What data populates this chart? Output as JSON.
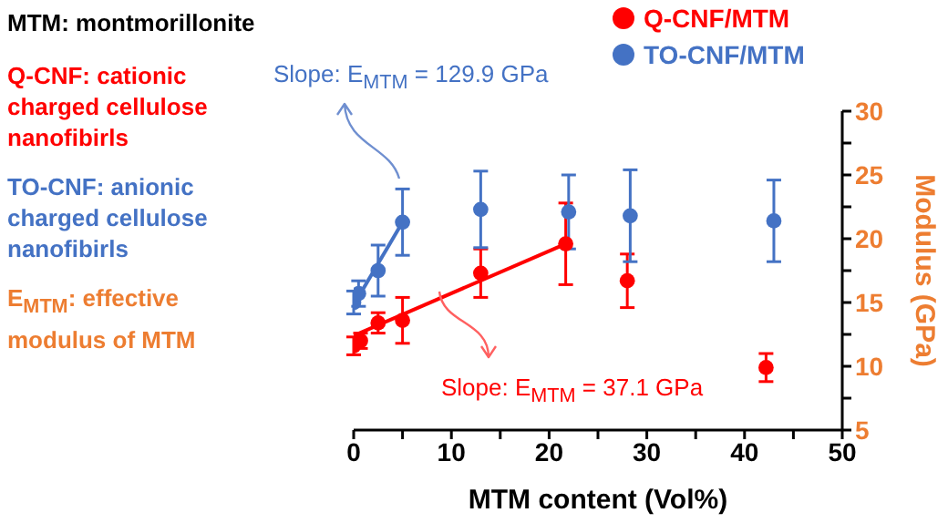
{
  "chart_data": {
    "type": "scatter",
    "xlabel": "MTM content (Vol%)",
    "ylabel": "Modulus (GPa)",
    "xlim": [
      0,
      50
    ],
    "xticks": [
      0,
      {
        "value": 5,
        "label": null
      },
      10,
      {
        "value": 15,
        "label": null
      },
      20,
      {
        "value": 25,
        "label": null
      },
      30,
      {
        "value": 35,
        "label": null
      },
      40,
      {
        "value": 45,
        "label": null
      },
      50
    ],
    "ylim": [
      5,
      30
    ],
    "yticks": [
      5,
      {
        "value": 7.5,
        "label": null
      },
      10,
      {
        "value": 12.5,
        "label": null
      },
      15,
      {
        "value": 17.5,
        "label": null
      },
      20,
      {
        "value": 22.5,
        "label": null
      },
      25,
      {
        "value": 27.5,
        "label": null
      },
      30
    ],
    "legend": "top right",
    "marker": "circle",
    "grid": false,
    "series": [
      {
        "name": "Q-CNF/MTM",
        "color": "#ff0000",
        "x": [
          0,
          0.7,
          2.5,
          5,
          13,
          21.7,
          28,
          42.2
        ],
        "values": [
          11.6,
          12.0,
          13.4,
          13.6,
          17.3,
          19.6,
          16.7,
          9.9
        ],
        "errors": [
          0.7,
          0.6,
          0.8,
          1.8,
          1.9,
          3.2,
          2.1,
          1.1
        ]
      },
      {
        "name": "TO-CNF/MTM",
        "color": "#4472c4",
        "x": [
          0,
          0.5,
          2.5,
          5,
          13,
          22,
          28.3,
          43
        ],
        "values": [
          15.0,
          15.7,
          17.5,
          21.3,
          22.3,
          22.1,
          21.8,
          21.4
        ],
        "errors": [
          0.9,
          1.0,
          2.0,
          2.6,
          3.0,
          2.9,
          3.6,
          3.2
        ]
      },
      {
        "type": "line",
        "marker": "none",
        "color": "#ff0000",
        "x": [
          0,
          21.7
        ],
        "values": [
          12.4,
          19.6
        ]
      },
      {
        "type": "line",
        "marker": "none",
        "color": "#4472c4",
        "x": [
          0,
          5
        ],
        "values": [
          14.8,
          21.3
        ]
      }
    ],
    "annotations": [
      "MTM: montmorillonite",
      "Q-CNF: cationic charged cellulose nanofibirls",
      "TO-CNF: anionic charged cellulose nanofibirls",
      "E$_{MTM}$: effective modulus of MTM",
      "Slope: E$_{MTM}$ = 129.9 GPa",
      "Slope: E$_{MTM}$ = 37.1 GPa"
    ]
  }
}
